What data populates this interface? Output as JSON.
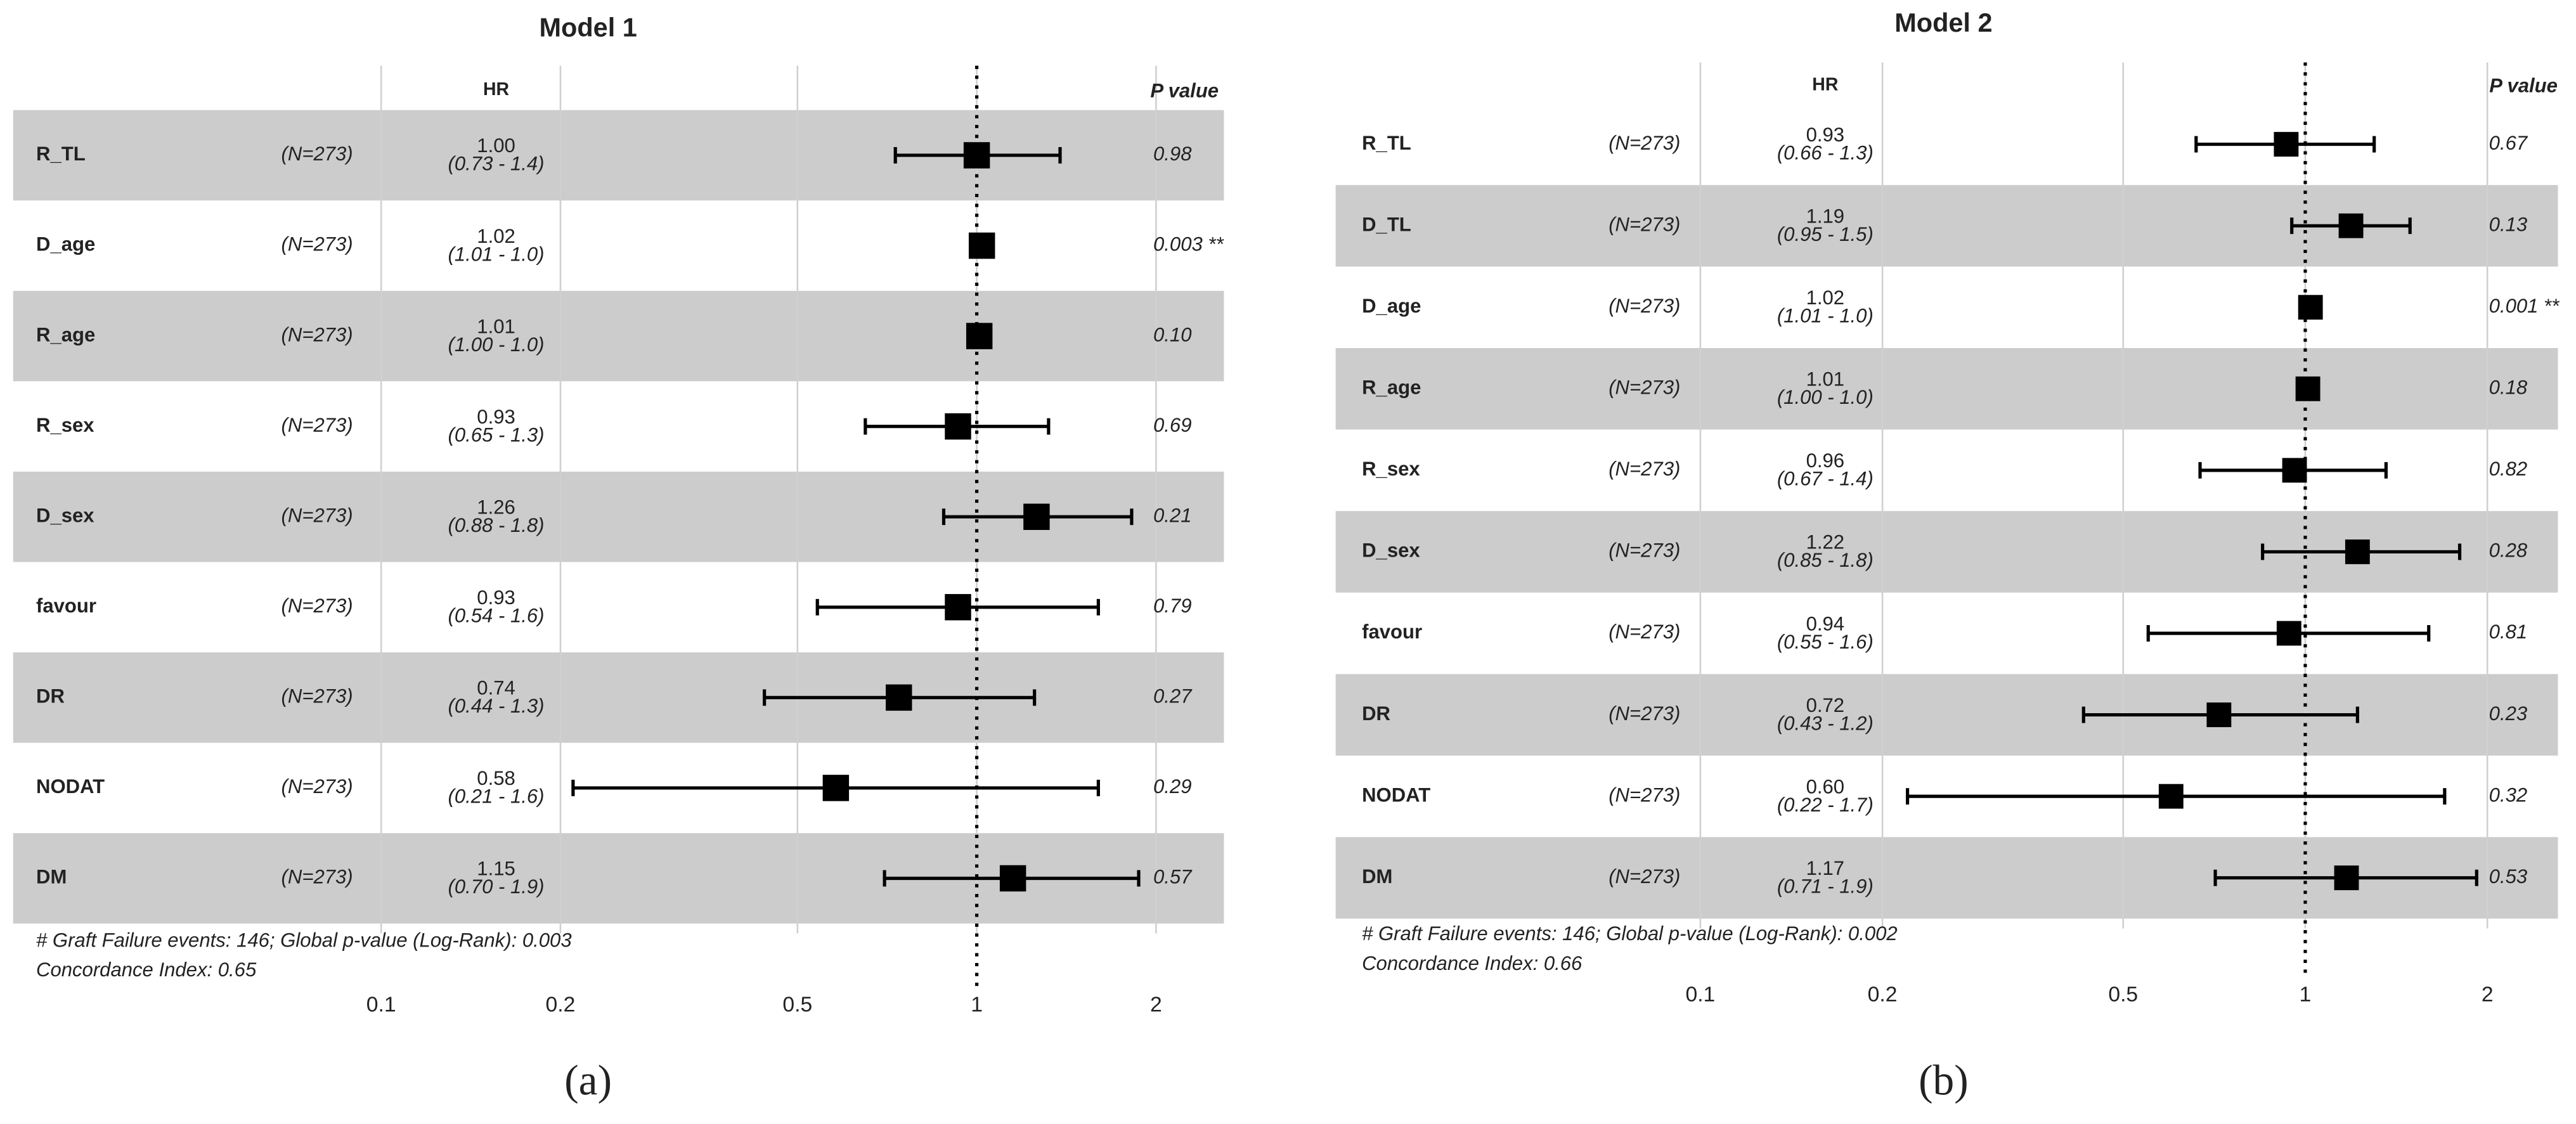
{
  "chart_data": [
    {
      "type": "forest",
      "title": "Model 1",
      "panel_label": "(a)",
      "hr_header": "HR",
      "p_header": "P value",
      "categories": [
        "R_TL",
        "D_age",
        "R_age",
        "R_sex",
        "D_sex",
        "favour",
        "DR",
        "NODAT",
        "DM"
      ],
      "n_labels": [
        "(N=273)",
        "(N=273)",
        "(N=273)",
        "(N=273)",
        "(N=273)",
        "(N=273)",
        "(N=273)",
        "(N=273)",
        "(N=273)"
      ],
      "values": [
        1.0,
        1.02,
        1.01,
        0.93,
        1.26,
        0.93,
        0.74,
        0.58,
        1.15
      ],
      "value_labels": [
        "1.00",
        "1.02",
        "1.01",
        "0.93",
        "1.26",
        "0.93",
        "0.74",
        "0.58",
        "1.15"
      ],
      "lower": [
        0.73,
        1.01,
        1.0,
        0.65,
        0.88,
        0.54,
        0.44,
        0.21,
        0.7
      ],
      "upper": [
        1.38,
        1.03,
        1.02,
        1.32,
        1.82,
        1.6,
        1.25,
        1.6,
        1.87
      ],
      "ci_labels": [
        "(0.73 - 1.4)",
        "(1.01 - 1.0)",
        "(1.00 - 1.0)",
        "(0.65 - 1.3)",
        "(0.88 - 1.8)",
        "(0.54 - 1.6)",
        "(0.44 - 1.3)",
        "(0.21 - 1.6)",
        "(0.70 - 1.9)"
      ],
      "p_labels": [
        "0.98",
        "0.003 **",
        "0.10",
        "0.69",
        "0.21",
        "0.79",
        "0.27",
        "0.29",
        "0.57"
      ],
      "footnotes": [
        "# Graft Failure events: 146; Global p-value (Log-Rank): 0.003",
        "Concordance Index: 0.65"
      ],
      "xlim": [
        0.1,
        2.6
      ],
      "xticks": [
        0.1,
        0.2,
        0.5,
        1,
        2
      ],
      "log_x": true,
      "reference_line": 1,
      "color": "#000000",
      "band_color": "#cccccc",
      "grid": true
    },
    {
      "type": "forest",
      "title": "Model 2",
      "panel_label": "(b)",
      "hr_header": "HR",
      "p_header": "P value",
      "categories": [
        "R_TL",
        "D_TL",
        "D_age",
        "R_age",
        "R_sex",
        "D_sex",
        "favour",
        "DR",
        "NODAT",
        "DM"
      ],
      "n_labels": [
        "(N=273)",
        "(N=273)",
        "(N=273)",
        "(N=273)",
        "(N=273)",
        "(N=273)",
        "(N=273)",
        "(N=273)",
        "(N=273)",
        "(N=273)"
      ],
      "values": [
        0.93,
        1.19,
        1.02,
        1.01,
        0.96,
        1.22,
        0.94,
        0.72,
        0.6,
        1.17
      ],
      "value_labels": [
        "0.93",
        "1.19",
        "1.02",
        "1.01",
        "0.96",
        "1.22",
        "0.94",
        "0.72",
        "0.60",
        "1.17"
      ],
      "lower": [
        0.66,
        0.95,
        1.01,
        1.0,
        0.67,
        0.85,
        0.55,
        0.43,
        0.22,
        0.71
      ],
      "upper": [
        1.3,
        1.49,
        1.03,
        1.02,
        1.36,
        1.8,
        1.6,
        1.22,
        1.7,
        1.92
      ],
      "ci_labels": [
        "(0.66 - 1.3)",
        "(0.95 - 1.5)",
        "(1.01 - 1.0)",
        "(1.00 - 1.0)",
        "(0.67 - 1.4)",
        "(0.85 - 1.8)",
        "(0.55 - 1.6)",
        "(0.43 - 1.2)",
        "(0.22 - 1.7)",
        "(0.71 - 1.9)"
      ],
      "p_labels": [
        "0.67",
        "0.13",
        "0.001 **",
        "0.18",
        "0.82",
        "0.28",
        "0.81",
        "0.23",
        "0.32",
        "0.53"
      ],
      "footnotes": [
        "# Graft Failure events: 146; Global p-value (Log-Rank): 0.002",
        "Concordance Index: 0.66"
      ],
      "xlim": [
        0.1,
        2.6
      ],
      "xticks": [
        0.1,
        0.2,
        0.5,
        1,
        2
      ],
      "log_x": true,
      "reference_line": 1,
      "color": "#000000",
      "band_color": "#cccccc",
      "grid": true
    }
  ]
}
